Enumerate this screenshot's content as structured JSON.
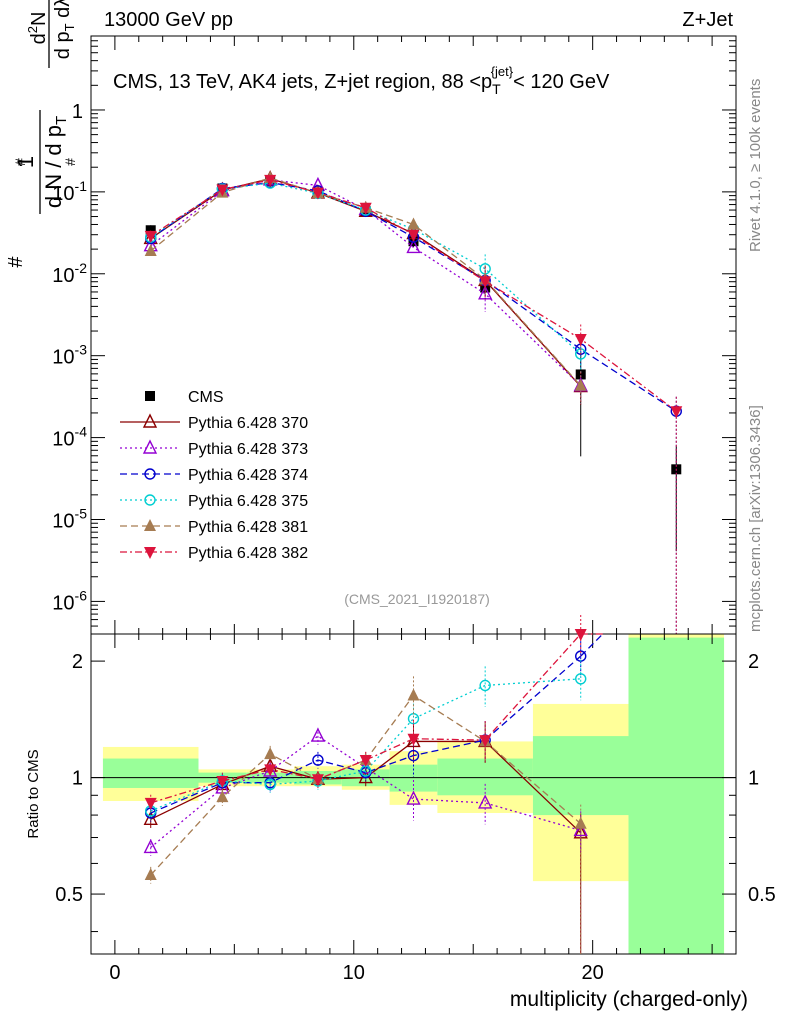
{
  "header": {
    "left": "13000 GeV pp",
    "right": "Z+Jet"
  },
  "side_labels": {
    "rivet": "Rivet 4.1.0, ≥ 100k events",
    "mcplots": "mcplots.cern.ch [arXiv:1306.3436]"
  },
  "chart_data": [
    {
      "type": "scatter",
      "panel": "main",
      "title": "CMS, 13 TeV, AK4 jets, Z+jet region, 88 <p_T^{jet}< 120 GeV",
      "analysis_tag": "(CMS_2021_I1920187)",
      "ylabel": "1/(dN/dpT) d²N/(dpT dλ)",
      "yscale": "log",
      "ylim": [
        4e-07,
        8
      ],
      "xlim": [
        -1,
        26
      ],
      "ytick_labels": [
        "1",
        "10^{-1}",
        "10^{-2}",
        "10^{-3}",
        "10^{-4}",
        "10^{-5}",
        "10^{-6}"
      ],
      "legend_position": "left, lower-middle",
      "series": [
        {
          "name": "CMS",
          "color": "#000000",
          "marker": "square-filled",
          "line": "none",
          "x": [
            1.5,
            4.5,
            6.5,
            8.5,
            10.5,
            12.5,
            15.5,
            19.5,
            23.5
          ],
          "y": [
            0.034,
            0.11,
            0.135,
            0.098,
            0.058,
            0.025,
            0.0068,
            0.00059,
            4.1e-05
          ]
        },
        {
          "name": "Pythia 6.428 370",
          "color": "#8b0000",
          "marker": "triangle-up-open",
          "line": "solid",
          "x": [
            1.5,
            4.5,
            6.5,
            8.5,
            10.5,
            12.5,
            15.5,
            19.5
          ],
          "y": [
            0.027,
            0.105,
            0.145,
            0.097,
            0.058,
            0.031,
            0.0083,
            0.00042
          ]
        },
        {
          "name": "Pythia 6.428 373",
          "color": "#9400d3",
          "marker": "triangle-up-open",
          "line": "dotted",
          "x": [
            1.5,
            4.5,
            6.5,
            8.5,
            10.5,
            12.5,
            15.5,
            19.5
          ],
          "y": [
            0.022,
            0.103,
            0.14,
            0.12,
            0.061,
            0.021,
            0.0057,
            0.00043
          ]
        },
        {
          "name": "Pythia 6.428 374",
          "color": "#0000cd",
          "marker": "circle-open",
          "line": "dashed",
          "x": [
            1.5,
            4.5,
            6.5,
            8.5,
            10.5,
            12.5,
            15.5,
            19.5,
            23.5
          ],
          "y": [
            0.027,
            0.11,
            0.13,
            0.103,
            0.058,
            0.028,
            0.0083,
            0.0012,
            0.00021
          ]
        },
        {
          "name": "Pythia 6.428 375",
          "color": "#00ced1",
          "marker": "circle-open",
          "line": "dotted",
          "x": [
            1.5,
            4.5,
            6.5,
            8.5,
            10.5,
            12.5,
            15.5,
            19.5
          ],
          "y": [
            0.028,
            0.108,
            0.128,
            0.096,
            0.06,
            0.035,
            0.0115,
            0.00105
          ]
        },
        {
          "name": "Pythia 6.428 381",
          "color": "#a67c52",
          "marker": "triangle-up-filled",
          "line": "dashed",
          "x": [
            1.5,
            4.5,
            6.5,
            8.5,
            10.5,
            12.5,
            15.5,
            19.5
          ],
          "y": [
            0.019,
            0.098,
            0.148,
            0.097,
            0.064,
            0.04,
            0.0085,
            0.00043
          ]
        },
        {
          "name": "Pythia 6.428 382",
          "color": "#dc143c",
          "marker": "triangle-down-filled",
          "line": "dashdot",
          "x": [
            1.5,
            4.5,
            6.5,
            8.5,
            10.5,
            12.5,
            15.5,
            19.5,
            23.5
          ],
          "y": [
            0.029,
            0.107,
            0.14,
            0.098,
            0.064,
            0.03,
            0.0081,
            0.0016,
            0.00021
          ]
        }
      ]
    },
    {
      "type": "scatter",
      "panel": "ratio",
      "ylabel": "Ratio to CMS",
      "xlabel": "multiplicity (charged-only)",
      "xlim": [
        -1,
        26
      ],
      "ylim": [
        0.35,
        2.35
      ],
      "xtick_labels": [
        "0",
        "10",
        "20"
      ],
      "ytick_labels": [
        "0.5",
        "1",
        "2"
      ],
      "bands": {
        "bins": [
          [
            -0.5,
            3.5
          ],
          [
            3.5,
            5.5
          ],
          [
            5.5,
            7.5
          ],
          [
            7.5,
            9.5
          ],
          [
            9.5,
            11.5
          ],
          [
            11.5,
            13.5
          ],
          [
            13.5,
            17.5
          ],
          [
            17.5,
            21.5
          ],
          [
            21.5,
            25.5
          ]
        ],
        "yellow": [
          [
            0.87,
            1.2
          ],
          [
            0.95,
            1.05
          ],
          [
            0.95,
            1.05
          ],
          [
            0.95,
            1.07
          ],
          [
            0.93,
            1.08
          ],
          [
            0.85,
            1.17
          ],
          [
            0.81,
            1.24
          ],
          [
            0.54,
            1.55
          ],
          [
            0.35,
            2.35
          ]
        ],
        "green": [
          [
            0.94,
            1.12
          ],
          [
            0.97,
            1.03
          ],
          [
            0.97,
            1.03
          ],
          [
            0.96,
            1.04
          ],
          [
            0.95,
            1.05
          ],
          [
            0.92,
            1.08
          ],
          [
            0.9,
            1.12
          ],
          [
            0.8,
            1.28
          ],
          [
            0.35,
            2.3
          ]
        ],
        "yellow_color": "#ffff99",
        "green_color": "#99ff99"
      },
      "series": [
        {
          "name": "Pythia 6.428 370",
          "x": [
            1.5,
            4.5,
            6.5,
            8.5,
            10.5,
            12.5,
            15.5,
            19.5
          ],
          "y": [
            0.78,
            0.96,
            1.07,
            0.99,
            1.0,
            1.24,
            1.24,
            0.72
          ]
        },
        {
          "name": "Pythia 6.428 373",
          "x": [
            1.5,
            4.5,
            6.5,
            8.5,
            10.5,
            12.5,
            15.5,
            19.5
          ],
          "y": [
            0.66,
            0.94,
            1.04,
            1.28,
            1.06,
            0.88,
            0.86,
            0.73
          ]
        },
        {
          "name": "Pythia 6.428 374",
          "x": [
            1.5,
            4.5,
            6.5,
            8.5,
            10.5,
            12.5,
            15.5,
            19.5
          ],
          "y": [
            0.81,
            0.97,
            0.97,
            1.11,
            1.03,
            1.14,
            1.25,
            2.06
          ]
        },
        {
          "name": "Pythia 6.428 375",
          "x": [
            1.5,
            4.5,
            6.5,
            8.5,
            10.5,
            12.5,
            15.5,
            19.5
          ],
          "y": [
            0.82,
            0.98,
            0.96,
            0.98,
            1.04,
            1.42,
            1.73,
            1.8
          ]
        },
        {
          "name": "Pythia 6.428 381",
          "x": [
            1.5,
            4.5,
            6.5,
            8.5,
            10.5,
            12.5,
            15.5,
            19.5
          ],
          "y": [
            0.56,
            0.89,
            1.15,
            0.99,
            1.11,
            1.63,
            1.24,
            0.76
          ]
        },
        {
          "name": "Pythia 6.428 382",
          "x": [
            1.5,
            4.5,
            6.5,
            8.5,
            10.5,
            12.5,
            15.5,
            19.5
          ],
          "y": [
            0.86,
            0.98,
            1.05,
            0.99,
            1.11,
            1.26,
            1.25,
            2.35
          ]
        }
      ]
    }
  ]
}
